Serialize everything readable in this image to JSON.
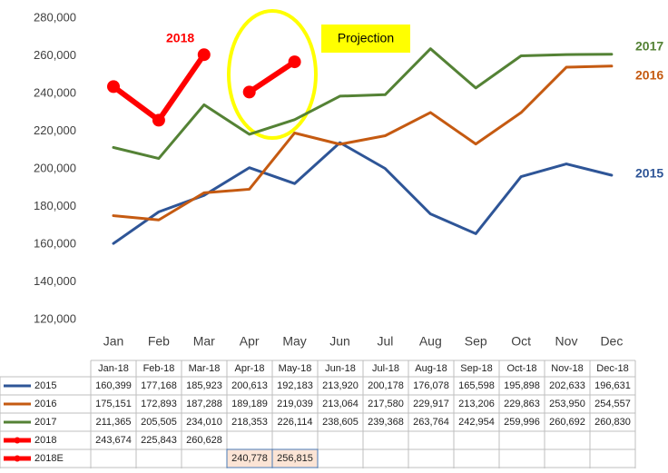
{
  "chart_data": {
    "type": "line",
    "categories": [
      "Jan",
      "Feb",
      "Mar",
      "Apr",
      "May",
      "Jun",
      "Jul",
      "Aug",
      "Sep",
      "Oct",
      "Nov",
      "Dec"
    ],
    "table_headers": [
      "Jan-18",
      "Feb-18",
      "Mar-18",
      "Apr-18",
      "May-18",
      "Jun-18",
      "Jul-18",
      "Aug-18",
      "Sep-18",
      "Oct-18",
      "Nov-18",
      "Dec-18"
    ],
    "ylim": [
      120000,
      280000
    ],
    "yticks": [
      {
        "value": 120000,
        "label": "120,000"
      },
      {
        "value": 140000,
        "label": "140,000"
      },
      {
        "value": 160000,
        "label": "160,000"
      },
      {
        "value": 180000,
        "label": "180,000"
      },
      {
        "value": 200000,
        "label": "200,000"
      },
      {
        "value": 220000,
        "label": "220,000"
      },
      {
        "value": 240000,
        "label": "240,000"
      },
      {
        "value": 260000,
        "label": "260,000"
      },
      {
        "value": 280000,
        "label": "280,000"
      }
    ],
    "annotation": "Projection",
    "series": [
      {
        "name": "2015",
        "color": "#2e5597",
        "values": [
          160399,
          177168,
          185923,
          200613,
          192183,
          213920,
          200178,
          176078,
          165598,
          195898,
          202633,
          196631
        ],
        "value_labels": [
          "160,399",
          "177,168",
          "185,923",
          "200,613",
          "192,183",
          "213,920",
          "200,178",
          "176,078",
          "165,598",
          "195,898",
          "202,633",
          "196,631"
        ]
      },
      {
        "name": "2016",
        "color": "#c55a11",
        "values": [
          175151,
          172893,
          187288,
          189189,
          219039,
          213064,
          217580,
          229917,
          213206,
          229863,
          253950,
          254557
        ],
        "value_labels": [
          "175,151",
          "172,893",
          "187,288",
          "189,189",
          "219,039",
          "213,064",
          "217,580",
          "229,917",
          "213,206",
          "229,863",
          "253,950",
          "254,557"
        ]
      },
      {
        "name": "2017",
        "color": "#548235",
        "values": [
          211365,
          205505,
          234010,
          218353,
          226114,
          238605,
          239368,
          263764,
          242954,
          259996,
          260692,
          260830
        ],
        "value_labels": [
          "211,365",
          "205,505",
          "234,010",
          "218,353",
          "226,114",
          "238,605",
          "239,368",
          "263,764",
          "242,954",
          "259,996",
          "260,692",
          "260,830"
        ]
      },
      {
        "name": "2018",
        "color": "#ff0000",
        "values": [
          243674,
          225843,
          260628,
          null,
          null,
          null,
          null,
          null,
          null,
          null,
          null,
          null
        ],
        "value_labels": [
          "243,674",
          "225,843",
          "260,628",
          null,
          null,
          null,
          null,
          null,
          null,
          null,
          null,
          null
        ]
      },
      {
        "name": "2018E",
        "color": "#ff0000",
        "values": [
          null,
          null,
          null,
          240778,
          256815,
          null,
          null,
          null,
          null,
          null,
          null,
          null
        ],
        "value_labels": [
          null,
          null,
          null,
          "240,778",
          "256,815",
          null,
          null,
          null,
          null,
          null,
          null,
          null
        ]
      }
    ]
  }
}
